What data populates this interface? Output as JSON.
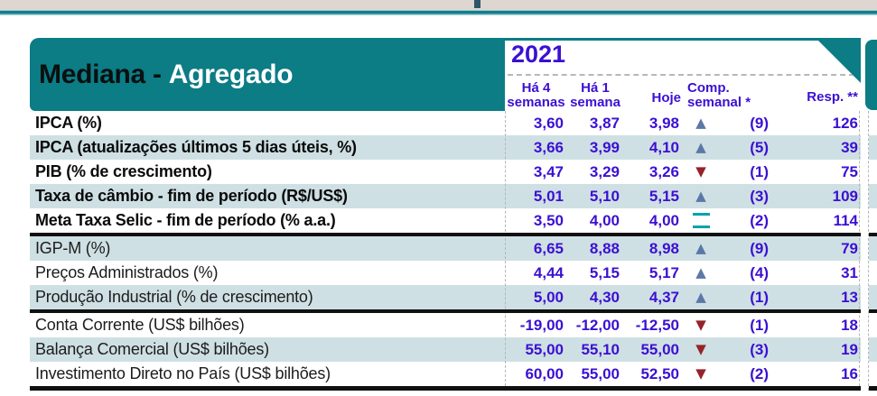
{
  "header": {
    "title_black": "Mediana - ",
    "title_white": "Agregado",
    "year": "2021",
    "columns": [
      {
        "line1": "Há 4",
        "line2": "semanas"
      },
      {
        "line1": "Há 1",
        "line2": "semana"
      },
      {
        "line1": "Hoje",
        "line2": ""
      },
      {
        "line1": "Comp.",
        "line2": "semanal *"
      },
      {
        "line1": "Resp. **",
        "line2": ""
      }
    ]
  },
  "table": {
    "rows": [
      {
        "label": "IPCA (%)",
        "block": 1,
        "bold": true,
        "stripe": false,
        "values": [
          "3,60",
          "3,87",
          "3,98"
        ],
        "direction": "up",
        "change": "(9)",
        "responses": "126"
      },
      {
        "label": "IPCA (atualizações últimos 5 dias úteis, %)",
        "block": 1,
        "bold": true,
        "stripe": true,
        "values": [
          "3,66",
          "3,99",
          "4,10"
        ],
        "direction": "up",
        "change": "(5)",
        "responses": "39"
      },
      {
        "label": "PIB (% de crescimento)",
        "block": 1,
        "bold": true,
        "stripe": false,
        "values": [
          "3,47",
          "3,29",
          "3,26"
        ],
        "direction": "down",
        "change": "(1)",
        "responses": "75"
      },
      {
        "label": "Taxa de câmbio - fim de período (R$/US$)",
        "block": 1,
        "bold": true,
        "stripe": true,
        "values": [
          "5,01",
          "5,10",
          "5,15"
        ],
        "direction": "up",
        "change": "(3)",
        "responses": "109"
      },
      {
        "label": "Meta Taxa Selic - fim de período (% a.a.)",
        "block": 1,
        "bold": true,
        "stripe": false,
        "values": [
          "3,50",
          "4,00",
          "4,00"
        ],
        "direction": "equal",
        "change": "(2)",
        "responses": "114"
      },
      {
        "label": "IGP-M (%)",
        "block": 2,
        "bold": false,
        "stripe": true,
        "values": [
          "6,65",
          "8,88",
          "8,98"
        ],
        "direction": "up",
        "change": "(9)",
        "responses": "79"
      },
      {
        "label": "Preços Administrados (%)",
        "block": 2,
        "bold": false,
        "stripe": false,
        "values": [
          "4,44",
          "5,15",
          "5,17"
        ],
        "direction": "up",
        "change": "(4)",
        "responses": "31"
      },
      {
        "label": "Produção Industrial (% de crescimento)",
        "block": 2,
        "bold": false,
        "stripe": true,
        "values": [
          "5,00",
          "4,30",
          "4,37"
        ],
        "direction": "up",
        "change": "(1)",
        "responses": "13"
      },
      {
        "label": "Conta Corrente (US$ bilhões)",
        "block": 3,
        "bold": false,
        "stripe": false,
        "values": [
          "-19,00",
          "-12,00",
          "-12,50"
        ],
        "direction": "down",
        "change": "(1)",
        "responses": "18"
      },
      {
        "label": "Balança Comercial (US$ bilhões)",
        "block": 3,
        "bold": false,
        "stripe": true,
        "values": [
          "55,00",
          "55,10",
          "55,00"
        ],
        "direction": "down",
        "change": "(3)",
        "responses": "19"
      },
      {
        "label": "Investimento Direto no País (US$ bilhões)",
        "block": 3,
        "bold": false,
        "stripe": false,
        "values": [
          "60,00",
          "55,00",
          "52,50"
        ],
        "direction": "down",
        "change": "(2)",
        "responses": "16"
      }
    ]
  },
  "colors": {
    "accent_teal": "#0c7c85",
    "row_stripe": "#cfe0e4",
    "value_blue": "#3b10d2",
    "up_arrow": "#5b79a6",
    "down_arrow": "#952329",
    "equals_teal": "#00a3ab",
    "top_bar_beige": "#ddd6d1"
  }
}
